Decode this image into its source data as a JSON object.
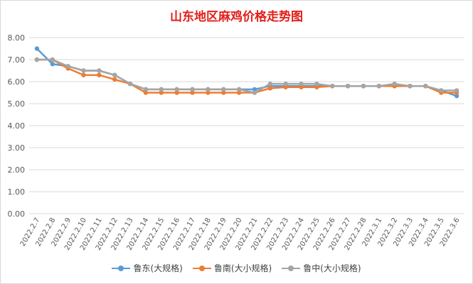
{
  "chart_data": {
    "type": "line",
    "title": "山东地区麻鸡价格走势图",
    "xlabel": "",
    "ylabel": "",
    "ylim": [
      0,
      8
    ],
    "yticks": [
      "0.00",
      "1.00",
      "2.00",
      "3.00",
      "4.00",
      "5.00",
      "6.00",
      "7.00",
      "8.00"
    ],
    "grid": true,
    "legend_position": "bottom",
    "categories": [
      "2022.2.7",
      "2022.2.8",
      "2022.2.9",
      "2022.2.10",
      "2022.2.11",
      "2022.2.12",
      "2022.2.13",
      "2022.2.14",
      "2022.2.15",
      "2022.2.16",
      "2022.2.17",
      "2022.2.18",
      "2022.2.19",
      "2022.2.20",
      "2022.2.21",
      "2022.2.22",
      "2022.2.23",
      "2022.2.24",
      "2022.2.25",
      "2022.2.26",
      "2022.2.27",
      "2022.2.28",
      "2022.3.1",
      "2022.3.2",
      "2022.3.3",
      "2022.3.4",
      "2022.3.5",
      "2022.3.6"
    ],
    "series": [
      {
        "name": "鲁东(大规格)",
        "color": "#5b9bd5",
        "values": [
          7.5,
          6.8,
          6.7,
          6.5,
          6.5,
          6.3,
          5.9,
          5.65,
          5.65,
          5.65,
          5.65,
          5.65,
          5.65,
          5.65,
          5.65,
          5.8,
          5.8,
          5.8,
          5.8,
          5.8,
          5.8,
          5.8,
          5.8,
          5.8,
          5.8,
          5.8,
          5.6,
          5.35
        ]
      },
      {
        "name": "鲁南(大小规格)",
        "color": "#ed7d31",
        "values": [
          7.0,
          7.0,
          6.6,
          6.3,
          6.3,
          6.1,
          5.9,
          5.5,
          5.5,
          5.5,
          5.5,
          5.5,
          5.5,
          5.5,
          5.5,
          5.7,
          5.75,
          5.75,
          5.75,
          5.8,
          5.8,
          5.8,
          5.8,
          5.8,
          5.8,
          5.8,
          5.5,
          5.5
        ]
      },
      {
        "name": "鲁中(大小规格)",
        "color": "#a5a5a5",
        "values": [
          7.0,
          7.0,
          6.7,
          6.5,
          6.5,
          6.3,
          5.9,
          5.65,
          5.65,
          5.65,
          5.65,
          5.65,
          5.65,
          5.65,
          5.5,
          5.9,
          5.9,
          5.9,
          5.9,
          5.8,
          5.8,
          5.8,
          5.8,
          5.9,
          5.8,
          5.8,
          5.6,
          5.6
        ]
      }
    ]
  }
}
